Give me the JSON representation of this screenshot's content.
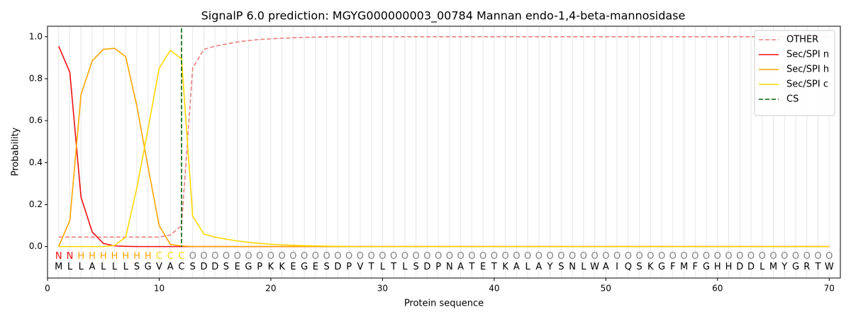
{
  "chart_data": {
    "type": "line",
    "title": "SignalP 6.0 prediction: MGYG000000003_00784 Mannan endo-1,4-beta-mannosidase",
    "xlabel": "Protein sequence",
    "ylabel": "Probability",
    "x": [
      1,
      2,
      3,
      4,
      5,
      6,
      7,
      8,
      9,
      10,
      11,
      12,
      13,
      14,
      15,
      16,
      17,
      18,
      19,
      20,
      21,
      22,
      23,
      24,
      25,
      26,
      27,
      28,
      29,
      30,
      31,
      32,
      33,
      34,
      35,
      36,
      37,
      38,
      39,
      40,
      41,
      42,
      43,
      44,
      45,
      46,
      47,
      48,
      49,
      50,
      51,
      52,
      53,
      54,
      55,
      56,
      57,
      58,
      59,
      60,
      61,
      62,
      63,
      64,
      65,
      66,
      67,
      68,
      69,
      70
    ],
    "series": [
      {
        "name": "OTHER",
        "color": "#e8807f",
        "linestyle": "dashed",
        "values": [
          0.045,
          0.045,
          0.045,
          0.045,
          0.045,
          0.045,
          0.045,
          0.045,
          0.045,
          0.045,
          0.055,
          0.1,
          0.85,
          0.94,
          0.955,
          0.965,
          0.975,
          0.982,
          0.987,
          0.99,
          0.993,
          0.995,
          0.997,
          0.998,
          0.999,
          1,
          1,
          1,
          1,
          1,
          1,
          1,
          1,
          1,
          1,
          1,
          1,
          1,
          1,
          1,
          1,
          1,
          1,
          1,
          1,
          1,
          1,
          1,
          1,
          1,
          1,
          1,
          1,
          1,
          1,
          1,
          1,
          1,
          1,
          1,
          1,
          1,
          1,
          1,
          1,
          1,
          1,
          1,
          1,
          1
        ]
      },
      {
        "name": "Sec/SPI n",
        "color": "#ee1111",
        "linestyle": "solid",
        "values": [
          0.955,
          0.83,
          0.235,
          0.07,
          0.015,
          0.003,
          0.001,
          0,
          0,
          0,
          0,
          0,
          0,
          0,
          0,
          0,
          0,
          0,
          0,
          0,
          0,
          0,
          0,
          0,
          0,
          0,
          0,
          0,
          0,
          0,
          0,
          0,
          0,
          0,
          0,
          0,
          0,
          0,
          0,
          0,
          0,
          0,
          0,
          0,
          0,
          0,
          0,
          0,
          0,
          0,
          0,
          0,
          0,
          0,
          0,
          0,
          0,
          0,
          0,
          0,
          0,
          0,
          0,
          0,
          0,
          0,
          0,
          0,
          0,
          0
        ]
      },
      {
        "name": "Sec/SPI h",
        "color": "#ffa500",
        "linestyle": "solid",
        "values": [
          0,
          0.125,
          0.725,
          0.885,
          0.94,
          0.945,
          0.905,
          0.67,
          0.38,
          0.1,
          0.01,
          0.003,
          0,
          0,
          0,
          0,
          0,
          0,
          0,
          0,
          0,
          0,
          0,
          0,
          0,
          0,
          0,
          0,
          0,
          0,
          0,
          0,
          0,
          0,
          0,
          0,
          0,
          0,
          0,
          0,
          0,
          0,
          0,
          0,
          0,
          0,
          0,
          0,
          0,
          0,
          0,
          0,
          0,
          0,
          0,
          0,
          0,
          0,
          0,
          0,
          0,
          0,
          0,
          0,
          0,
          0,
          0,
          0,
          0,
          0
        ]
      },
      {
        "name": "Sec/SPI c",
        "color": "#ffd700",
        "linestyle": "solid",
        "values": [
          0,
          0,
          0,
          0,
          0,
          0.005,
          0.045,
          0.28,
          0.56,
          0.85,
          0.935,
          0.895,
          0.145,
          0.06,
          0.045,
          0.035,
          0.027,
          0.02,
          0.015,
          0.011,
          0.008,
          0.006,
          0.004,
          0.003,
          0.002,
          0.001,
          0,
          0,
          0,
          0,
          0,
          0,
          0,
          0,
          0,
          0,
          0,
          0,
          0,
          0,
          0,
          0,
          0,
          0,
          0,
          0,
          0,
          0,
          0,
          0,
          0,
          0,
          0,
          0,
          0,
          0,
          0,
          0,
          0,
          0,
          0,
          0,
          0,
          0,
          0,
          0,
          0,
          0,
          0,
          0
        ]
      }
    ],
    "cs": {
      "name": "CS",
      "color": "#006400",
      "x": 12
    },
    "regions": [
      "N",
      "N",
      "H",
      "H",
      "H",
      "H",
      "H",
      "H",
      "H",
      "C",
      "C",
      "C",
      "O",
      "O",
      "O",
      "O",
      "O",
      "O",
      "O",
      "O",
      "O",
      "O",
      "O",
      "O",
      "O",
      "O",
      "O",
      "O",
      "O",
      "O",
      "O",
      "O",
      "O",
      "O",
      "O",
      "O",
      "O",
      "O",
      "O",
      "O",
      "O",
      "O",
      "O",
      "O",
      "O",
      "O",
      "O",
      "O",
      "O",
      "O",
      "O",
      "O",
      "O",
      "O",
      "O",
      "O",
      "O",
      "O",
      "O",
      "O",
      "O",
      "O",
      "O",
      "O",
      "O",
      "O",
      "O",
      "O",
      "O",
      "O"
    ],
    "region_colors": {
      "N": "#ee1111",
      "H": "#ffa500",
      "C": "#ffd700",
      "O": "#808080"
    },
    "sequence": [
      "M",
      "L",
      "L",
      "A",
      "L",
      "L",
      "L",
      "S",
      "G",
      "V",
      "A",
      "C",
      "S",
      "D",
      "D",
      "S",
      "E",
      "G",
      "P",
      "K",
      "K",
      "E",
      "G",
      "E",
      "S",
      "D",
      "P",
      "V",
      "T",
      "L",
      "T",
      "L",
      "S",
      "D",
      "P",
      "N",
      "A",
      "T",
      "E",
      "T",
      "K",
      "A",
      "L",
      "A",
      "Y",
      "S",
      "N",
      "L",
      "W",
      "A",
      "I",
      "Q",
      "S",
      "K",
      "G",
      "F",
      "M",
      "F",
      "G",
      "H",
      "H",
      "D",
      "D",
      "L",
      "M",
      "Y",
      "G",
      "R",
      "T",
      "W"
    ],
    "xlim": [
      0,
      71
    ],
    "ylim": [
      -0.15,
      1.05
    ],
    "xticks": [
      0,
      10,
      20,
      30,
      40,
      50,
      60,
      70
    ],
    "yticks": [
      {
        "value": 0,
        "label": "0.0"
      },
      {
        "value": 0.2,
        "label": "0.2"
      },
      {
        "value": 0.4,
        "label": "0.4"
      },
      {
        "value": 0.6,
        "label": "0.6"
      },
      {
        "value": 0.8,
        "label": "0.8"
      },
      {
        "value": 1,
        "label": "1.0"
      }
    ],
    "grid": true,
    "legend": "upper right"
  }
}
